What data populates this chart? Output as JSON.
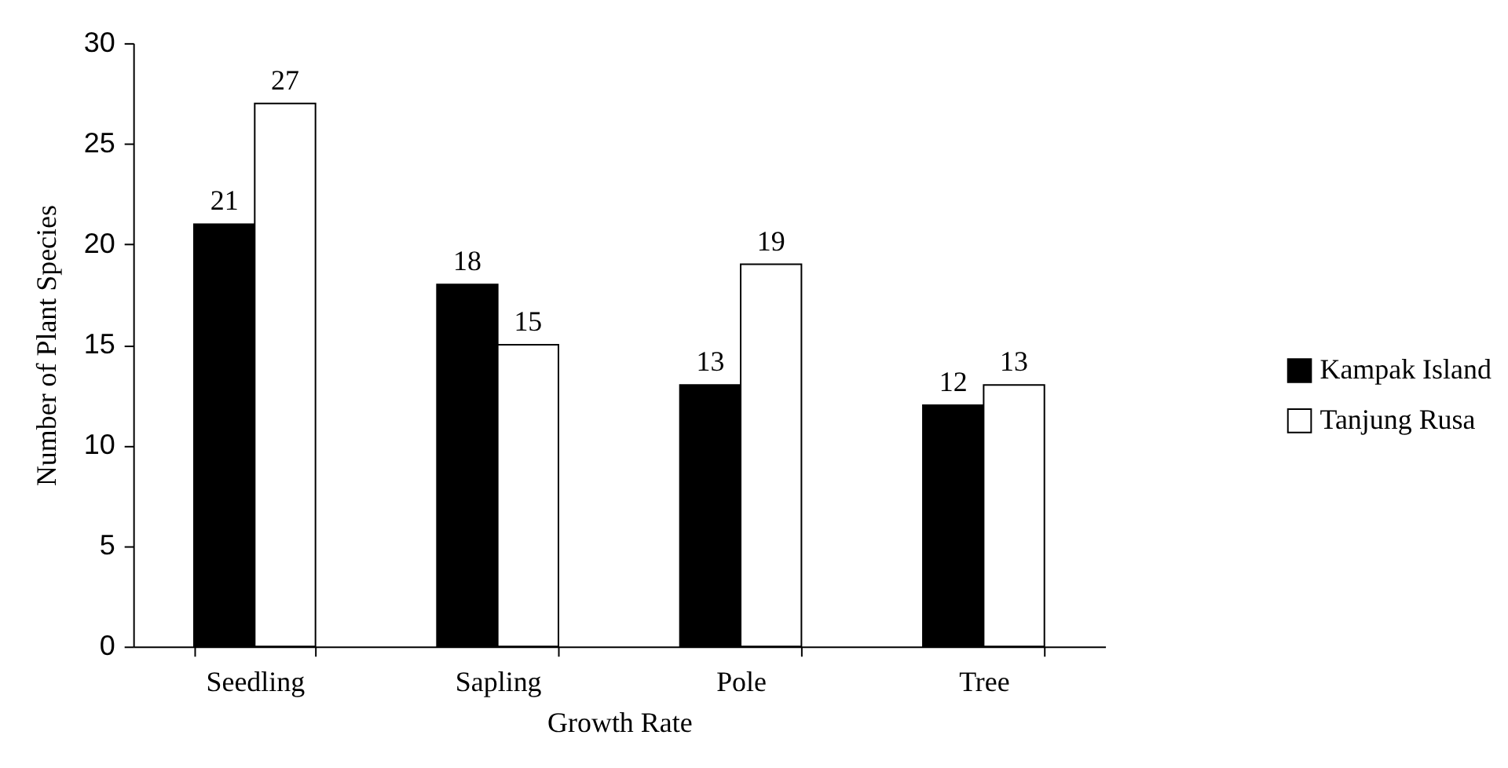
{
  "chart_data": {
    "type": "bar",
    "xlabel": "Growth Rate",
    "ylabel": "Number of Plant Species",
    "categories": [
      "Seedling",
      "Sapling",
      "Pole",
      "Tree"
    ],
    "series": [
      {
        "name": "Kampak Island",
        "color": "#000000",
        "values": [
          21,
          18,
          13,
          12
        ]
      },
      {
        "name": "Tanjung Rusa",
        "color": "#ffffff",
        "values": [
          27,
          15,
          19,
          13
        ]
      }
    ],
    "ylim": [
      0,
      30
    ],
    "yticks": [
      0,
      5,
      10,
      15,
      20,
      25,
      30
    ],
    "grid": false,
    "legend": "right",
    "data_labels": true
  }
}
